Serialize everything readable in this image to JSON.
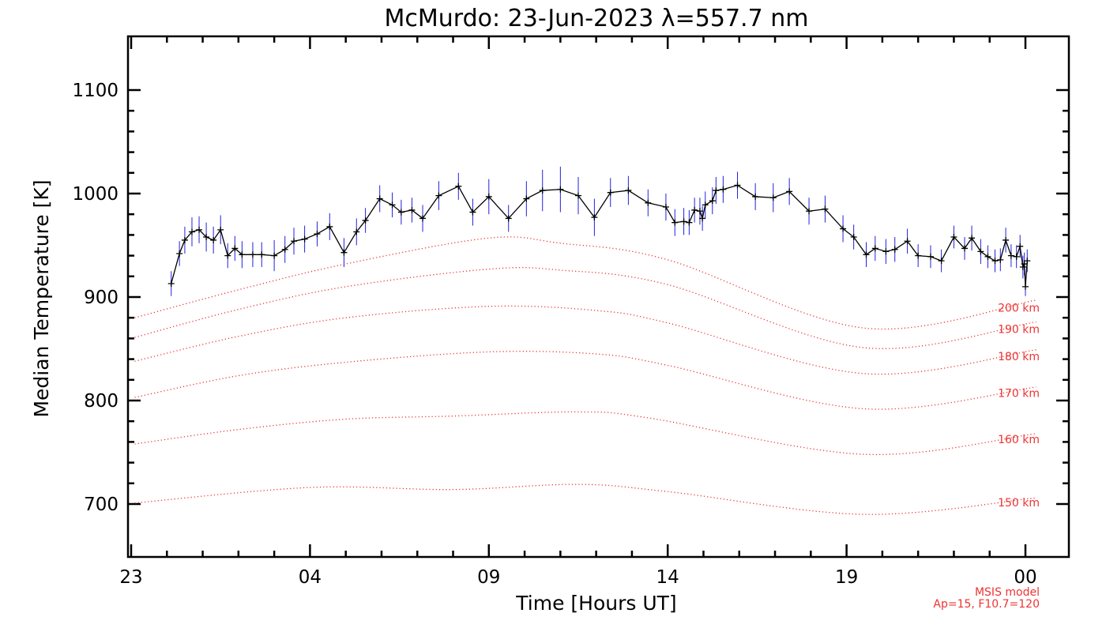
{
  "chart_data": {
    "type": "line",
    "title": "McMurdo: 23-Jun-2023 λ=557.7 nm",
    "xlabel": "Time [Hours UT]",
    "ylabel": "Median Temperature [K]",
    "xlim": [
      23,
      48
    ],
    "ylim": [
      650,
      1150
    ],
    "x_ticks": [
      {
        "value": 23,
        "label": "23"
      },
      {
        "value": 28,
        "label": "04"
      },
      {
        "value": 33,
        "label": "09"
      },
      {
        "value": 38,
        "label": "14"
      },
      {
        "value": 43,
        "label": "19"
      },
      {
        "value": 48,
        "label": "00"
      }
    ],
    "y_ticks": [
      {
        "value": 700,
        "label": "700"
      },
      {
        "value": 800,
        "label": "800"
      },
      {
        "value": 900,
        "label": "900"
      },
      {
        "value": 1000,
        "label": "1000"
      },
      {
        "value": 1100,
        "label": "1100"
      }
    ],
    "measured": {
      "name": "Median temperature",
      "color": "#000000",
      "errorbar_color": "#2222dd",
      "points": [
        [
          24.12,
          913,
          12
        ],
        [
          24.35,
          942,
          12
        ],
        [
          24.5,
          955,
          13
        ],
        [
          24.7,
          963,
          14
        ],
        [
          24.9,
          965,
          13
        ],
        [
          25.1,
          958,
          14
        ],
        [
          25.3,
          955,
          13
        ],
        [
          25.5,
          965,
          14
        ],
        [
          25.7,
          940,
          12
        ],
        [
          25.9,
          947,
          12
        ],
        [
          26.1,
          941,
          13
        ],
        [
          26.4,
          941,
          12
        ],
        [
          26.65,
          941,
          12
        ],
        [
          27.0,
          940,
          15
        ],
        [
          27.3,
          946,
          13
        ],
        [
          27.55,
          954,
          13
        ],
        [
          27.85,
          956,
          13
        ],
        [
          28.2,
          961,
          12
        ],
        [
          28.55,
          968,
          13
        ],
        [
          28.95,
          943,
          14
        ],
        [
          29.3,
          963,
          13
        ],
        [
          29.55,
          974,
          12
        ],
        [
          29.95,
          995,
          13
        ],
        [
          30.3,
          989,
          12
        ],
        [
          30.55,
          982,
          12
        ],
        [
          30.85,
          984,
          12
        ],
        [
          31.15,
          976,
          13
        ],
        [
          31.6,
          998,
          14
        ],
        [
          32.15,
          1007,
          13
        ],
        [
          32.55,
          982,
          13
        ],
        [
          33.0,
          997,
          17
        ],
        [
          33.55,
          976,
          13
        ],
        [
          34.05,
          995,
          17
        ],
        [
          34.5,
          1003,
          20
        ],
        [
          35.0,
          1004,
          22
        ],
        [
          35.5,
          998,
          18
        ],
        [
          35.95,
          977,
          18
        ],
        [
          36.4,
          1001,
          14
        ],
        [
          36.9,
          1003,
          14
        ],
        [
          37.45,
          991,
          13
        ],
        [
          37.95,
          987,
          13
        ],
        [
          38.2,
          972,
          13
        ],
        [
          38.45,
          973,
          13
        ],
        [
          38.6,
          972,
          12
        ],
        [
          38.75,
          984,
          12
        ],
        [
          38.9,
          983,
          13
        ],
        [
          38.97,
          976,
          12
        ],
        [
          39.05,
          989,
          13
        ],
        [
          39.25,
          993,
          13
        ],
        [
          39.35,
          1003,
          13
        ],
        [
          39.55,
          1004,
          13
        ],
        [
          39.95,
          1008,
          13
        ],
        [
          40.45,
          997,
          13
        ],
        [
          40.95,
          996,
          14
        ],
        [
          41.4,
          1002,
          13
        ],
        [
          41.95,
          983,
          13
        ],
        [
          42.4,
          985,
          13
        ],
        [
          42.9,
          966,
          13
        ],
        [
          43.2,
          958,
          12
        ],
        [
          43.55,
          941,
          12
        ],
        [
          43.8,
          947,
          12
        ],
        [
          44.1,
          944,
          12
        ],
        [
          44.35,
          946,
          12
        ],
        [
          44.7,
          954,
          12
        ],
        [
          45.0,
          940,
          11
        ],
        [
          45.35,
          939,
          11
        ],
        [
          45.65,
          935,
          11
        ],
        [
          46.0,
          958,
          11
        ],
        [
          46.3,
          947,
          11
        ],
        [
          46.5,
          957,
          12
        ],
        [
          46.75,
          944,
          12
        ],
        [
          46.95,
          939,
          11
        ],
        [
          47.15,
          935,
          11
        ],
        [
          47.3,
          936,
          11
        ],
        [
          47.45,
          955,
          12
        ],
        [
          47.6,
          940,
          11
        ],
        [
          47.75,
          939,
          11
        ],
        [
          47.85,
          949,
          11
        ],
        [
          47.93,
          929,
          11
        ],
        [
          47.97,
          932,
          11
        ],
        [
          48.05,
          935,
          11
        ],
        [
          48.0,
          910,
          9
        ]
      ]
    },
    "model_series": [
      {
        "name": "150 km",
        "values": [
          [
            23.1,
            701
          ],
          [
            28,
            716
          ],
          [
            32,
            714
          ],
          [
            35.5,
            719
          ],
          [
            38,
            712
          ],
          [
            43.5,
            690
          ],
          [
            48.3,
            706
          ]
        ]
      },
      {
        "name": "160 km",
        "values": [
          [
            23.1,
            758
          ],
          [
            26,
            772
          ],
          [
            29,
            782
          ],
          [
            32,
            785
          ],
          [
            35.5,
            789
          ],
          [
            37.5,
            783
          ],
          [
            43.5,
            748
          ],
          [
            48.3,
            768
          ]
        ]
      },
      {
        "name": "170 km",
        "values": [
          [
            23.1,
            803
          ],
          [
            26,
            824
          ],
          [
            29,
            837
          ],
          [
            33,
            847
          ],
          [
            36,
            845
          ],
          [
            38,
            834
          ],
          [
            43.5,
            792
          ],
          [
            48.3,
            813
          ]
        ]
      },
      {
        "name": "180 km",
        "values": [
          [
            23.1,
            838
          ],
          [
            26,
            862
          ],
          [
            29,
            880
          ],
          [
            33,
            891
          ],
          [
            36,
            887
          ],
          [
            38,
            875
          ],
          [
            43.5,
            826
          ],
          [
            48.3,
            849
          ]
        ]
      },
      {
        "name": "190 km",
        "values": [
          [
            23.1,
            861
          ],
          [
            26,
            888
          ],
          [
            29,
            910
          ],
          [
            33,
            927
          ],
          [
            35,
            926
          ],
          [
            38,
            912
          ],
          [
            43.5,
            851
          ],
          [
            48.3,
            876
          ]
        ]
      },
      {
        "name": "200 km",
        "values": [
          [
            23.1,
            880
          ],
          [
            26,
            907
          ],
          [
            29,
            932
          ],
          [
            33,
            957
          ],
          [
            35,
            952
          ],
          [
            38,
            936
          ],
          [
            43.5,
            870
          ],
          [
            48.3,
            897
          ]
        ]
      }
    ],
    "model_color": "#ee3333",
    "note": [
      "MSIS model",
      "Ap=15, F10.7=120"
    ],
    "grid": false
  }
}
